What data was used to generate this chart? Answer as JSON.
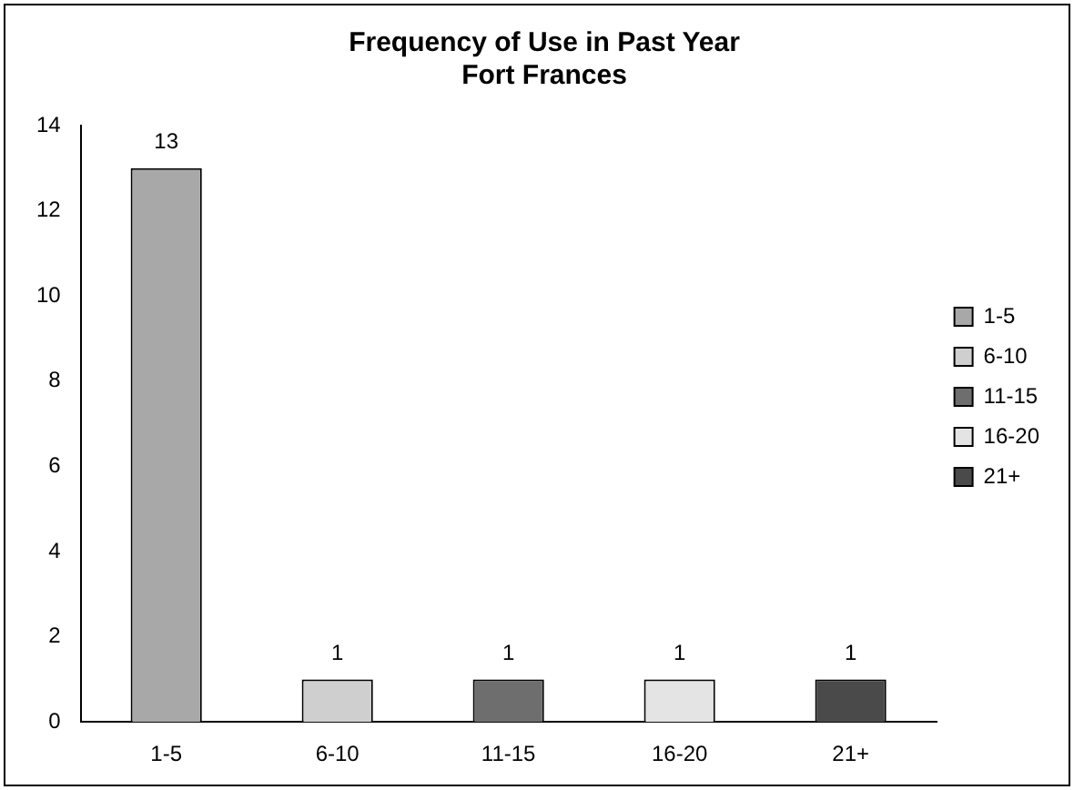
{
  "chart_data": {
    "type": "bar",
    "title": "Frequency of Use in Past Year",
    "subtitle": "Fort Frances",
    "categories": [
      "1-5",
      "6-10",
      "11-15",
      "16-20",
      "21+"
    ],
    "series": [
      {
        "name": "1-5",
        "color": "#a8a8a8",
        "values": [
          13,
          null,
          null,
          null,
          null
        ]
      },
      {
        "name": "6-10",
        "color": "#cfcfcf",
        "values": [
          null,
          1,
          null,
          null,
          null
        ]
      },
      {
        "name": "11-15",
        "color": "#6e6e6e",
        "values": [
          null,
          null,
          1,
          null,
          null
        ]
      },
      {
        "name": "16-20",
        "color": "#e4e4e4",
        "values": [
          null,
          null,
          null,
          1,
          null
        ]
      },
      {
        "name": "21+",
        "color": "#4a4a4a",
        "values": [
          null,
          null,
          null,
          null,
          1
        ]
      }
    ],
    "ylim": [
      0,
      14
    ],
    "yticks": [
      0,
      2,
      4,
      6,
      8,
      10,
      12,
      14
    ],
    "grid": false,
    "legend": "right",
    "data_labels": true
  }
}
